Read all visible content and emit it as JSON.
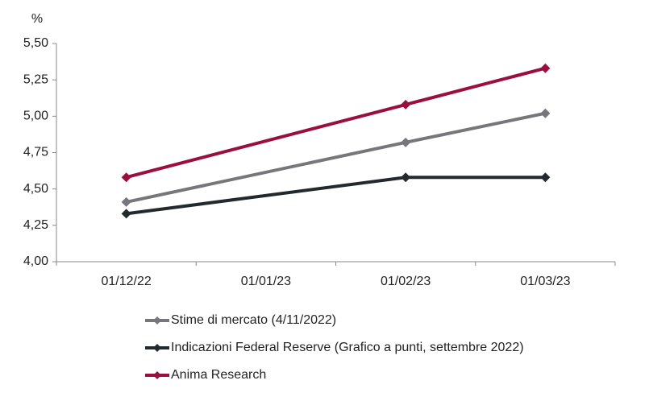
{
  "chart_data": {
    "type": "line",
    "y_unit": "%",
    "categories": [
      "01/12/22",
      "01/01/23",
      "01/02/23",
      "01/03/23"
    ],
    "ylim": [
      4.0,
      5.5
    ],
    "yticks": [
      {
        "value": 4.0,
        "label": "4,00"
      },
      {
        "value": 4.25,
        "label": "4,25"
      },
      {
        "value": 4.5,
        "label": "4,50"
      },
      {
        "value": 4.75,
        "label": "4,75"
      },
      {
        "value": 5.0,
        "label": "5,00"
      },
      {
        "value": 5.25,
        "label": "5,25"
      },
      {
        "value": 5.5,
        "label": "5,50"
      }
    ],
    "series": [
      {
        "name": "Stime di mercato (4/11/2022)",
        "color": "#77767b",
        "x": [
          "01/12/22",
          "01/02/23",
          "01/03/23"
        ],
        "values": [
          4.41,
          4.82,
          5.02
        ]
      },
      {
        "name": "Indicazioni Federal Reserve (Grafico a punti, settembre 2022)",
        "color": "#232a2e",
        "x": [
          "01/12/22",
          "01/02/23",
          "01/03/23"
        ],
        "values": [
          4.33,
          4.58,
          4.58
        ]
      },
      {
        "name": "Anima Research",
        "color": "#9b0f3f",
        "x": [
          "01/12/22",
          "01/02/23",
          "01/03/23"
        ],
        "values": [
          4.58,
          5.08,
          5.33
        ]
      }
    ]
  }
}
